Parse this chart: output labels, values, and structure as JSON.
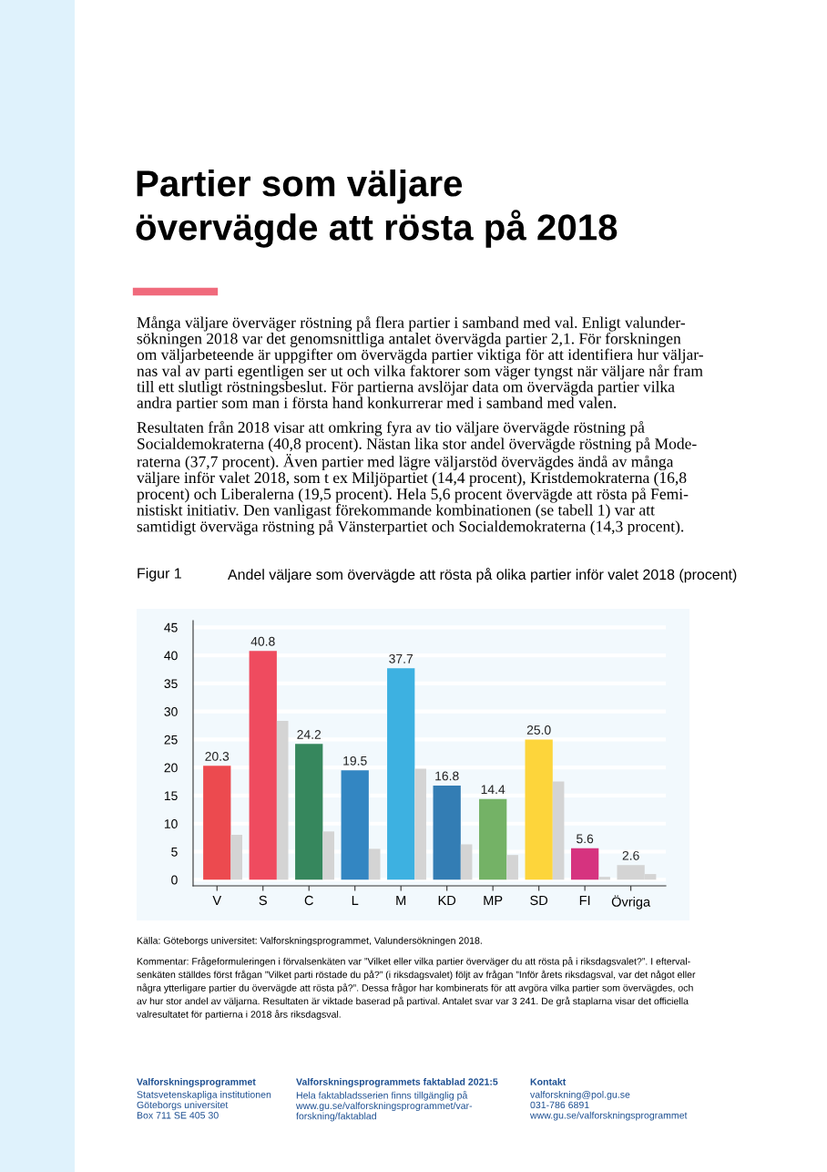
{
  "chart_data": {
    "type": "bar",
    "title": "Partier som väljare\növervägde att rösta på 2018",
    "subtitle": "Andel väljare som övervägde att rösta på olika partier inför valet 2018 (procent)",
    "categories": [
      "V",
      "S",
      "C",
      "L",
      "M",
      "KD",
      "MP",
      "SD",
      "FI",
      "Övriga"
    ],
    "series": [
      {
        "colors": [
          "#ec4a4f",
          "#ef4b5f",
          "#36875d",
          "#3386c2",
          "#3db1e1",
          "#337db4",
          "#74b266",
          "#fdd53b",
          "#d6337f",
          "#d4d4d4"
        ],
        "values": [
          20.3,
          40.8,
          24.2,
          19.5,
          37.7,
          16.8,
          14.4,
          25.0,
          5.6,
          2.6
        ],
        "value_labels": [
          "20.3",
          "40.8",
          "24.2",
          "19.5",
          "37.7",
          "16.8",
          "14.4",
          "25.0",
          "5.6",
          "2.6"
        ]
      },
      {
        "color": "#d4d4d4",
        "values": [
          8.0,
          28.3,
          8.6,
          5.5,
          19.8,
          6.3,
          4.4,
          17.5,
          0.5,
          1.0
        ]
      }
    ],
    "ylim": [
      -1.1,
      46.2
    ],
    "yticks": [
      0,
      5,
      10,
      15,
      20,
      25,
      30,
      35,
      40,
      45
    ],
    "grid": "y",
    "annotations": [
      "Många väljare överväger röstning på flera partier i samband med val. Enligt valunder-\nsökningen 2018 var det genomsnittliga antalet övervägda partier 2,1. För forskningen\nom väljarbeteende är uppgifter om övervägda partier viktiga för att identifiera hur väljar-\nnas val av parti egentligen ser ut och vilka faktorer som väger tyngst när väljare når fram\ntill ett slutligt röstningsbeslut. För partierna avslöjar data om övervägda partier vilka\nandra partier som man i första hand konkurrerar med i samband med valen.",
      "Resultaten från 2018 visar att omkring fyra av tio väljare övervägde röstning på\nSocialdemokraterna (40,8 procent). Nästan lika stor andel övervägde röstning på Mode-\nraterna (37,7 procent). Även partier med lägre väljarstöd övervägdes ändå av många\nväljare inför valet 2018, som t ex Miljöpartiet (14,4 procent), Kristdemokraterna (16,8\nprocent) och Liberalerna (19,5 procent). Hela 5,6 procent övervägde att rösta på Femi-\nnistiskt initiativ. Den vanligast förekommande kombinationen (se tabell 1) var att\nsamtidigt överväga röstning på Vänsterpartiet och Socialdemokraterna (14,3 procent).",
      "Figur 1",
      "Källa: Göteborgs universitet: Valforskningsprogrammet, Valundersökningen 2018.",
      "Kommentar: Frågeformuleringen i förvalsenkäten var ”Vilket eller vilka partier överväger du att rösta på i riksdagsvalet?”. I efterval-\nsenkäten ställdes först frågan ”Vilket parti röstade du på?” (i riksdagsvalet) följt av frågan ”Inför årets riksdagsval, var det något eller\nnågra ytterligare partier du övervägde att rösta på?”. Dessa frågor har kombinerats för att avgöra vilka partier som övervägdes, och\nav hur stor andel av väljarna. Resultaten är viktade baserad på partival. Antalet svar var 3 241. De grå staplarna visar det officiella\nvalresultatet för partierna i 2018 års riksdagsval.",
      "Valforskningsprogrammet",
      "Statsvetenskapliga institutionen\nGöteborgs universitet\nBox 711 SE 405 30",
      "Valforskningsprogrammets faktablad 2021:5",
      "Hela faktabladsserien finns tillgänglig på\nwww.gu.se/valforskningsprogrammet/var-\nforskning/faktablad",
      "Kontakt",
      "valforskning@pol.gu.se\n031-786 6891\nwww.gu.se/valforskningsprogrammet"
    ]
  }
}
